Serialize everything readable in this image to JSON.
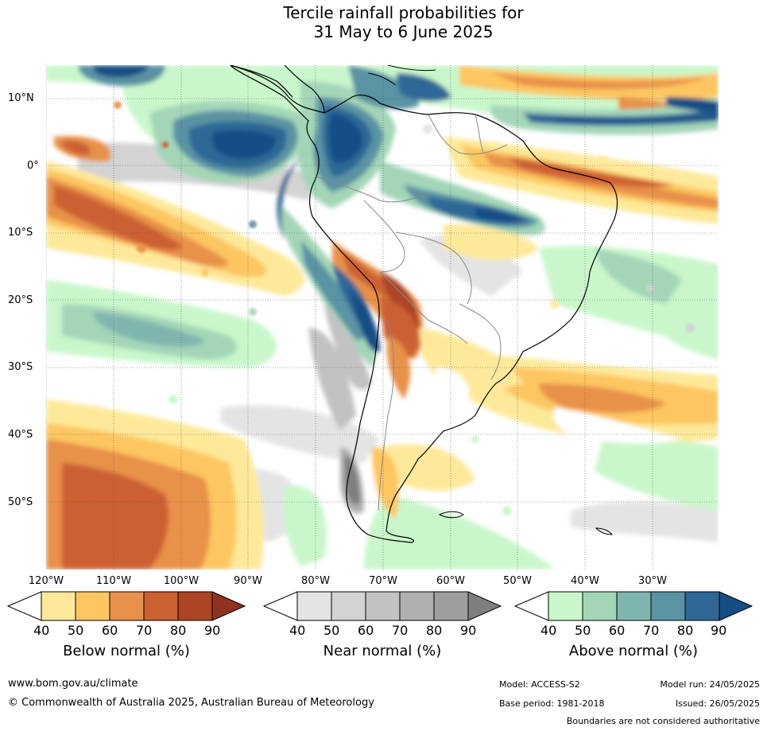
{
  "title": {
    "line1": "Tercile rainfall probabilities for",
    "line2": "31 May to 6 June 2025"
  },
  "map": {
    "lat_labels": [
      "10°N",
      "0°",
      "10°S",
      "20°S",
      "30°S",
      "40°S",
      "50°S"
    ],
    "lon_labels": [
      "120°W",
      "110°W",
      "100°W",
      "90°W",
      "80°W",
      "70°W",
      "60°W",
      "50°W",
      "40°W",
      "30°W"
    ]
  },
  "legend": {
    "below": {
      "title": "Below normal (%)",
      "ticks": [
        "40",
        "50",
        "60",
        "70",
        "80",
        "90"
      ],
      "colors": [
        "#ffffff",
        "#fee99a",
        "#fdc661",
        "#e8914a",
        "#cc6131",
        "#ad4525",
        "#8f3320"
      ]
    },
    "near": {
      "title": "Near normal (%)",
      "ticks": [
        "40",
        "50",
        "60",
        "70",
        "80",
        "90"
      ],
      "colors": [
        "#ffffff",
        "#e4e4e4",
        "#d3d3d3",
        "#c2c2c2",
        "#b0b0b0",
        "#9e9e9e",
        "#7f7f7f"
      ]
    },
    "above": {
      "title": "Above normal (%)",
      "ticks": [
        "40",
        "50",
        "60",
        "70",
        "80",
        "90"
      ],
      "colors": [
        "#ffffff",
        "#c9f7cb",
        "#a3d6b7",
        "#7fb5af",
        "#5a93a3",
        "#2f6797",
        "#154e86"
      ]
    }
  },
  "footer": {
    "website": "www.bom.gov.au/climate",
    "copyright": "© Commonwealth of Australia 2025, Australian Bureau of Meteorology",
    "model": "Model: ACCESS-S2",
    "base_period": "Base period: 1981-2018",
    "model_run": "Model run: 24/05/2025",
    "issued": "Issued: 26/05/2025",
    "disclaimer": "Boundaries are not considered authoritative"
  }
}
